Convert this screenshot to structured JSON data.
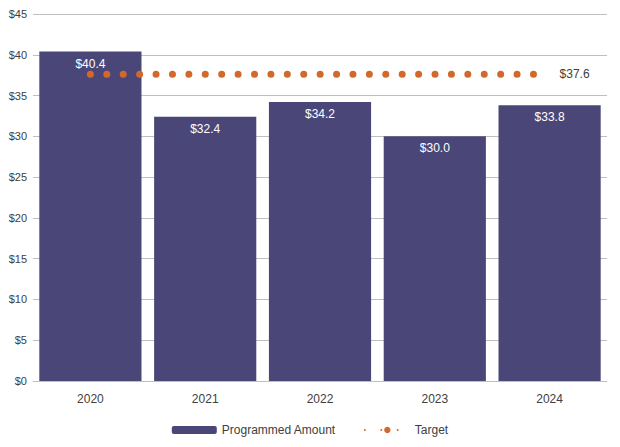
{
  "chart_data": {
    "type": "bar",
    "categories": [
      "2020",
      "2021",
      "2022",
      "2023",
      "2024"
    ],
    "series": [
      {
        "name": "Programmed Amount",
        "type": "bar",
        "color": "#4a4778",
        "values": [
          40.4,
          32.4,
          34.2,
          30.0,
          33.8
        ],
        "value_labels": [
          "$40.4",
          "$32.4",
          "$34.2",
          "$30.0",
          "$33.8"
        ]
      },
      {
        "name": "Target",
        "type": "line",
        "line_style": "dotted",
        "color": "#d2692a",
        "values": [
          37.6,
          37.6,
          37.6,
          37.6,
          37.6
        ],
        "value_labels": [
          null,
          null,
          null,
          null,
          "$37.6"
        ]
      }
    ],
    "ylim": [
      0,
      45
    ],
    "yticks": [
      {
        "value": 0,
        "label": "$0"
      },
      {
        "value": 5,
        "label": "$5"
      },
      {
        "value": 10,
        "label": "$10"
      },
      {
        "value": 15,
        "label": "$15"
      },
      {
        "value": 20,
        "label": "$20"
      },
      {
        "value": 25,
        "label": "$25"
      },
      {
        "value": 30,
        "label": "$30"
      },
      {
        "value": 35,
        "label": "$35"
      },
      {
        "value": 40,
        "label": "$40"
      },
      {
        "value": 45,
        "label": "$45"
      }
    ],
    "grid": true,
    "legend": "bottom",
    "data_labels": true
  }
}
